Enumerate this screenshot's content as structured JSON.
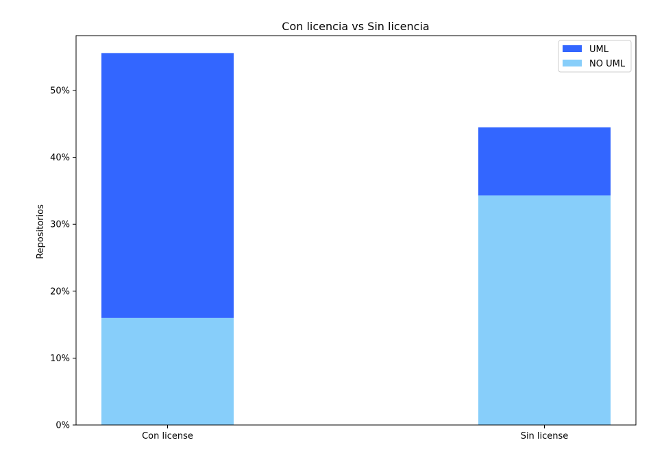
{
  "chart_data": {
    "type": "bar",
    "stacked": true,
    "title": "Con licencia vs Sin licencia",
    "xlabel": "",
    "ylabel": "Repositorios",
    "categories": [
      "Con license",
      "Sin license"
    ],
    "series": [
      {
        "name": "NO UML",
        "values": [
          16.0,
          34.3
        ],
        "color": "#87CEFA"
      },
      {
        "name": "UML",
        "values": [
          39.6,
          10.2
        ],
        "color": "#3366FF"
      }
    ],
    "ylim": [
      0,
      58.2
    ],
    "yticks": [
      0,
      10,
      20,
      30,
      40,
      50
    ],
    "ytick_format": "percent",
    "legend_order": [
      "UML",
      "NO UML"
    ],
    "legend_position": "upper right",
    "grid": false
  }
}
